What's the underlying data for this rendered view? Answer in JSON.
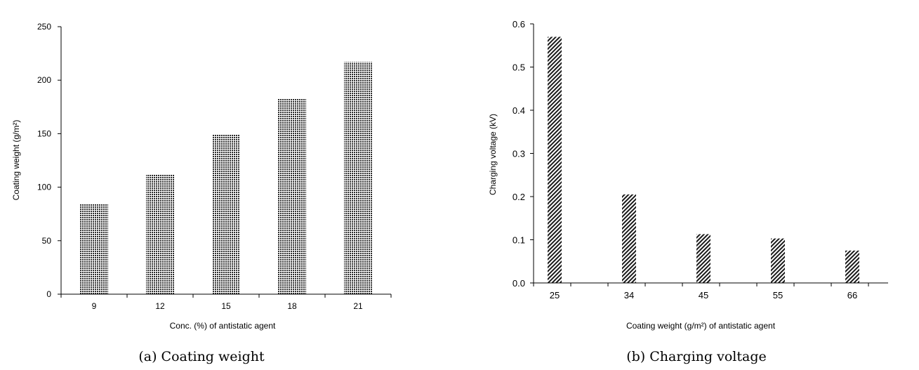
{
  "chart_data": [
    {
      "type": "bar",
      "caption": "(a) Coating weight",
      "xlabel": "Conc. (%) of antistatic agent",
      "ylabel": "Coating weight (g/m²)",
      "categories": [
        "9",
        "12",
        "15",
        "18",
        "21"
      ],
      "values": [
        84,
        112,
        149,
        183,
        217
      ],
      "ylim": [
        0,
        250
      ],
      "yticks": [
        "0",
        "50",
        "100",
        "150",
        "200",
        "250"
      ],
      "grid": false,
      "fill": "#3a3a3a"
    },
    {
      "type": "bar",
      "caption": "(b) Charging voltage",
      "xlabel": "Coating weight (g/m²) of antistatic agent",
      "ylabel": "Charging voltage (kV)",
      "categories": [
        "25",
        "34",
        "45",
        "55",
        "66"
      ],
      "values": [
        0.57,
        0.205,
        0.113,
        0.103,
        0.075
      ],
      "ylim": [
        0,
        0.6
      ],
      "yticks": [
        "0.0",
        "0.1",
        "0.2",
        "0.3",
        "0.4",
        "0.5",
        "0.6"
      ],
      "grid": false,
      "fill": "#222222"
    }
  ]
}
